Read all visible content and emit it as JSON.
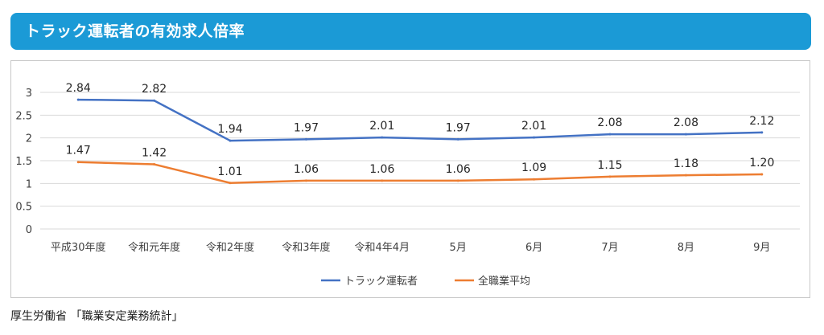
{
  "header": {
    "title": "トラック運転者の有効求人倍率"
  },
  "source": "厚生労働省 「職業安定業務統計」",
  "chart_data": {
    "type": "line",
    "title": "",
    "xlabel": "",
    "ylabel": "",
    "ylim": [
      0,
      3
    ],
    "yticks": [
      "0",
      "0.5",
      "1",
      "1.5",
      "2",
      "2.5",
      "3"
    ],
    "grid": true,
    "legend_position": "bottom",
    "categories": [
      "平成30年度",
      "令和元年度",
      "令和2年度",
      "令和3年度",
      "令和4年4月",
      "5月",
      "6月",
      "7月",
      "8月",
      "9月"
    ],
    "series": [
      {
        "name": "トラック運転者",
        "color": "#4472c4",
        "values": [
          2.84,
          2.82,
          1.94,
          1.97,
          2.01,
          1.97,
          2.01,
          2.08,
          2.08,
          2.12
        ],
        "labels": [
          "2.84",
          "2.82",
          "1.94",
          "1.97",
          "2.01",
          "1.97",
          "2.01",
          "2.08",
          "2.08",
          "2.12"
        ]
      },
      {
        "name": "全職業平均",
        "color": "#ed7d31",
        "values": [
          1.47,
          1.42,
          1.01,
          1.06,
          1.06,
          1.06,
          1.09,
          1.15,
          1.18,
          1.2
        ],
        "labels": [
          "1.47",
          "1.42",
          "1.01",
          "1.06",
          "1.06",
          "1.06",
          "1.09",
          "1.15",
          "1.18",
          "1.20"
        ]
      }
    ]
  }
}
